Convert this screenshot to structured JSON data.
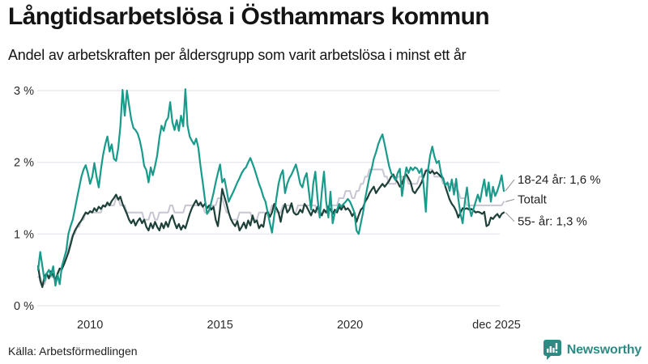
{
  "header": {
    "title": "Långtidsarbetslösa i Östhammars kommun",
    "subtitle": "Andel av arbetskraften per åldersgrupp som varit arbetslösa i minst ett år"
  },
  "footer": {
    "source": "Källa: Arbetsförmedlingen",
    "brand": "Newsworthy"
  },
  "colors": {
    "youth_line": "#189b8a",
    "total_line": "#c8c6d2",
    "senior_line": "#1d4039",
    "gridline": "#e9e9ef",
    "connector": "#8f8f8f",
    "brand_teal": "#2e8b84",
    "text": "#141414"
  },
  "chart_data": {
    "type": "line",
    "title": "Långtidsarbetslösa i Östhammars kommun",
    "subtitle": "Andel av arbetskraften per åldersgrupp som varit arbetslösa i minst ett år",
    "x_axis": {
      "start_year": 2008,
      "start_month": 1,
      "end_year": 2025,
      "end_month": 12,
      "frequency": "monthly"
    },
    "y_axis": {
      "min": 0,
      "max": 3,
      "unit": "%",
      "grid": true
    },
    "y_ticks": [
      {
        "value": 0,
        "label": "0 %"
      },
      {
        "value": 1,
        "label": "1 %"
      },
      {
        "value": 2,
        "label": "2 %"
      },
      {
        "value": 3,
        "label": "3 %"
      }
    ],
    "x_ticks": [
      {
        "year": 2010.0,
        "label": "2010"
      },
      {
        "year": 2015.0,
        "label": "2015"
      },
      {
        "year": 2020.0,
        "label": "2020"
      },
      {
        "year": 2025.92,
        "label": "dec 2025"
      }
    ],
    "legend_position": "end-of-line-callouts",
    "series": [
      {
        "name": "18-24 år",
        "color": "#189b8a",
        "width": 2.2,
        "end_value_label": "1,6 %",
        "values": [
          0.5,
          0.75,
          0.55,
          0.35,
          0.45,
          0.5,
          0.42,
          0.55,
          0.28,
          0.43,
          0.3,
          0.55,
          0.66,
          0.77,
          1.0,
          1.11,
          1.2,
          1.35,
          1.5,
          1.65,
          1.8,
          1.9,
          1.96,
          1.85,
          1.7,
          1.8,
          1.99,
          1.8,
          1.65,
          1.9,
          2.1,
          2.25,
          2.36,
          2.15,
          2.25,
          2.05,
          2.02,
          2.2,
          2.5,
          3.01,
          2.65,
          3.0,
          2.8,
          2.6,
          2.48,
          2.45,
          2.4,
          2.3,
          2.15,
          1.95,
          1.89,
          1.72,
          1.93,
          1.82,
          1.95,
          2.1,
          2.34,
          2.51,
          2.44,
          2.57,
          2.62,
          2.84,
          2.56,
          2.45,
          2.59,
          2.44,
          2.65,
          2.5,
          3.02,
          2.51,
          2.36,
          2.3,
          2.25,
          2.33,
          2.2,
          1.94,
          1.72,
          1.49,
          1.28,
          1.34,
          1.45,
          1.57,
          1.72,
          1.85,
          1.97,
          1.72,
          1.77,
          1.62,
          1.45,
          1.52,
          1.58,
          1.65,
          1.72,
          1.78,
          1.85,
          1.9,
          1.93,
          2.0,
          2.06,
          1.98,
          1.9,
          1.8,
          1.7,
          1.62,
          1.52,
          1.45,
          1.3,
          1.15,
          1.02,
          1.25,
          1.5,
          1.7,
          1.82,
          1.89,
          1.57,
          1.7,
          1.78,
          1.83,
          1.9,
          1.97,
          1.85,
          1.7,
          1.65,
          1.78,
          1.85,
          1.6,
          1.34,
          1.7,
          1.87,
          1.5,
          1.23,
          1.59,
          1.87,
          1.45,
          1.23,
          1.59,
          1.15,
          1.3,
          1.34,
          1.42,
          1.38,
          1.42,
          1.45,
          1.49,
          1.45,
          1.38,
          1.3,
          1.05,
          1.0,
          1.15,
          1.3,
          1.49,
          1.65,
          1.8,
          1.91,
          2.05,
          2.14,
          2.25,
          2.33,
          2.39,
          2.25,
          2.1,
          1.95,
          1.85,
          1.8,
          1.75,
          1.85,
          1.91,
          1.53,
          1.75,
          1.93,
          1.85,
          1.93,
          1.89,
          1.93,
          1.91,
          1.85,
          1.91,
          1.68,
          1.31,
          1.89,
          2.1,
          2.22,
          2.08,
          1.99,
          2.02,
          1.85,
          1.76,
          1.68,
          1.72,
          1.6,
          1.76,
          1.55,
          1.77,
          1.49,
          1.28,
          1.15,
          1.45,
          1.65,
          1.38,
          1.25,
          1.35,
          1.45,
          1.55,
          1.45,
          1.62,
          1.76,
          1.53,
          1.72,
          1.45,
          1.66,
          1.53,
          1.6,
          1.7,
          1.82,
          1.6
        ]
      },
      {
        "name": "Totalt",
        "color": "#c8c6d2",
        "width": 2.0,
        "end_value_label": "",
        "values": [
          0.4,
          0.4,
          0.3,
          0.3,
          0.4,
          0.4,
          0.4,
          0.4,
          0.4,
          0.4,
          0.5,
          0.5,
          0.6,
          0.7,
          0.8,
          0.9,
          1.0,
          1.0,
          1.1,
          1.1,
          1.2,
          1.2,
          1.3,
          1.3,
          1.3,
          1.3,
          1.3,
          1.3,
          1.3,
          1.3,
          1.4,
          1.4,
          1.4,
          1.4,
          1.4,
          1.4,
          1.5,
          1.5,
          1.4,
          1.4,
          1.4,
          1.3,
          1.3,
          1.3,
          1.3,
          1.3,
          1.3,
          1.3,
          1.3,
          1.2,
          1.2,
          1.2,
          1.3,
          1.3,
          1.2,
          1.2,
          1.3,
          1.3,
          1.3,
          1.3,
          1.3,
          1.4,
          1.4,
          1.3,
          1.3,
          1.3,
          1.3,
          1.3,
          1.4,
          1.4,
          1.4,
          1.4,
          1.4,
          1.4,
          1.4,
          1.4,
          1.4,
          1.3,
          1.3,
          1.3,
          1.4,
          1.4,
          1.4,
          1.5,
          1.5,
          1.5,
          1.4,
          1.3,
          1.3,
          1.2,
          1.2,
          1.2,
          1.2,
          1.3,
          1.3,
          1.3,
          1.3,
          1.3,
          1.3,
          1.2,
          1.2,
          1.2,
          1.3,
          1.3,
          1.3,
          1.3,
          1.3,
          1.3,
          1.4,
          1.4,
          1.3,
          1.3,
          1.3,
          1.4,
          1.4,
          1.4,
          1.4,
          1.4,
          1.3,
          1.3,
          1.4,
          1.4,
          1.4,
          1.4,
          1.4,
          1.4,
          1.4,
          1.4,
          1.4,
          1.3,
          1.3,
          1.3,
          1.3,
          1.3,
          1.4,
          1.4,
          1.4,
          1.4,
          1.4,
          1.5,
          1.5,
          1.5,
          1.6,
          1.6,
          1.6,
          1.5,
          1.5,
          1.6,
          1.6,
          1.7,
          1.7,
          1.8,
          1.8,
          1.9,
          1.9,
          1.9,
          1.9,
          1.9,
          1.9,
          1.9,
          1.8,
          1.8,
          1.7,
          1.7,
          1.7,
          1.7,
          1.8,
          1.8,
          1.8,
          1.8,
          1.8,
          1.7,
          1.7,
          1.7,
          1.7,
          1.7,
          1.8,
          1.8,
          1.8,
          1.9,
          1.9,
          1.9,
          1.9,
          1.8,
          1.8,
          1.8,
          1.8,
          1.7,
          1.7,
          1.7,
          1.7,
          1.7,
          1.7,
          1.6,
          1.6,
          1.5,
          1.5,
          1.5,
          1.4,
          1.4,
          1.4,
          1.4,
          1.4,
          1.4,
          1.4,
          1.4,
          1.4,
          1.4,
          1.4,
          1.4,
          1.4,
          1.4,
          1.4,
          1.4,
          1.4,
          1.45
        ]
      },
      {
        "name": "55- år",
        "color": "#1d4039",
        "width": 2.2,
        "end_value_label": "1,3 %",
        "values": [
          0.55,
          0.35,
          0.26,
          0.41,
          0.45,
          0.38,
          0.48,
          0.42,
          0.35,
          0.45,
          0.52,
          0.51,
          0.58,
          0.66,
          0.74,
          0.85,
          0.97,
          1.05,
          1.1,
          1.15,
          1.19,
          1.25,
          1.3,
          1.28,
          1.32,
          1.3,
          1.36,
          1.32,
          1.38,
          1.35,
          1.4,
          1.38,
          1.44,
          1.4,
          1.46,
          1.5,
          1.55,
          1.48,
          1.52,
          1.42,
          1.35,
          1.28,
          1.2,
          1.15,
          1.2,
          1.12,
          1.18,
          1.22,
          1.15,
          1.2,
          1.1,
          1.05,
          1.15,
          1.08,
          1.17,
          1.1,
          1.05,
          1.15,
          1.08,
          1.17,
          1.1,
          1.2,
          1.26,
          1.16,
          1.08,
          1.14,
          1.06,
          1.12,
          1.08,
          1.18,
          1.28,
          1.36,
          1.42,
          1.47,
          1.4,
          1.44,
          1.38,
          1.42,
          1.36,
          1.4,
          1.34,
          1.38,
          1.2,
          1.11,
          1.35,
          1.63,
          1.52,
          1.42,
          1.3,
          1.21,
          1.15,
          1.11,
          1.18,
          1.05,
          1.1,
          1.16,
          1.08,
          1.19,
          1.12,
          1.26,
          1.16,
          1.19,
          1.08,
          1.13,
          1.1,
          1.28,
          1.31,
          1.24,
          1.3,
          1.42,
          1.36,
          1.3,
          1.17,
          1.33,
          1.42,
          1.3,
          1.34,
          1.43,
          1.3,
          1.27,
          1.28,
          1.34,
          1.3,
          1.42,
          1.38,
          1.32,
          1.26,
          1.34,
          1.3,
          1.38,
          1.3,
          1.26,
          1.34,
          1.3,
          1.38,
          1.34,
          1.28,
          1.34,
          1.3,
          1.38,
          1.34,
          1.4,
          1.34,
          1.36,
          1.32,
          1.25,
          1.3,
          1.17,
          1.26,
          1.34,
          1.37,
          1.45,
          1.5,
          1.57,
          1.62,
          1.66,
          1.57,
          1.62,
          1.66,
          1.7,
          1.66,
          1.7,
          1.74,
          1.8,
          1.83,
          1.76,
          1.72,
          1.66,
          1.7,
          1.8,
          1.83,
          1.78,
          1.72,
          1.6,
          1.57,
          1.62,
          1.66,
          1.72,
          1.8,
          1.88,
          1.89,
          1.85,
          1.88,
          1.84,
          1.86,
          1.83,
          1.8,
          1.78,
          1.66,
          1.57,
          1.48,
          1.42,
          1.38,
          1.32,
          1.23,
          1.3,
          1.36,
          1.35,
          1.36,
          1.34,
          1.35,
          1.33,
          1.3,
          1.31,
          1.3,
          1.28,
          1.31,
          1.11,
          1.13,
          1.23,
          1.21,
          1.25,
          1.28,
          1.23,
          1.28,
          1.3
        ]
      }
    ],
    "callouts": [
      {
        "series": "18-24 år",
        "label": "18-24 år: 1,6 %"
      },
      {
        "series": "Totalt",
        "label": "Totalt"
      },
      {
        "series": "55- år",
        "label": "55- år: 1,3 %"
      }
    ]
  }
}
